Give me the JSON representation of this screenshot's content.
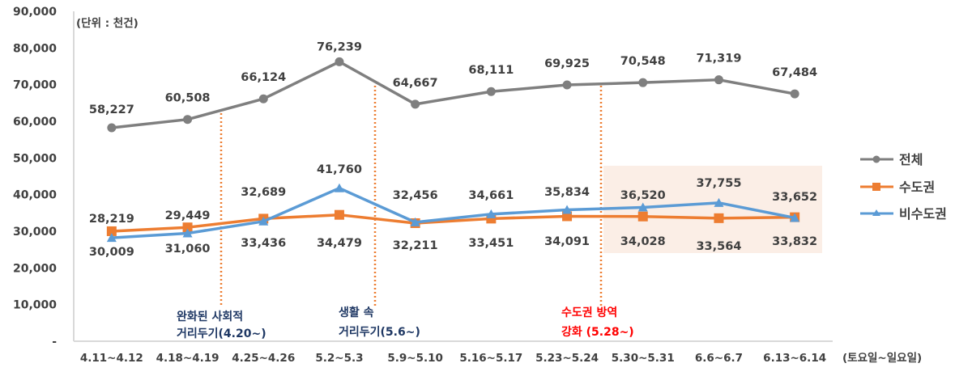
{
  "chart_data": {
    "type": "line",
    "title": "",
    "unit_label": "(단위 : 천건)",
    "xlabel": "(토요일~일요일)",
    "ylabel": "",
    "ylim": [
      0,
      90000
    ],
    "yticks": [
      0,
      10000,
      20000,
      30000,
      40000,
      50000,
      60000,
      70000,
      80000,
      90000
    ],
    "ytick_labels": [
      "-",
      "10,000",
      "20,000",
      "30,000",
      "40,000",
      "50,000",
      "60,000",
      "70,000",
      "80,000",
      "90,000"
    ],
    "grid": false,
    "legend_position": "right",
    "categories": [
      "4.11~4.12",
      "4.18~4.19",
      "4.25~4.26",
      "5.2~5.3",
      "5.9~5.10",
      "5.16~5.17",
      "5.23~5.24",
      "5.30~5.31",
      "6.6~6.7",
      "6.13~6.14"
    ],
    "series": [
      {
        "name": "전체",
        "color": "#7f7f7f",
        "marker": "circle",
        "values": [
          58227,
          60508,
          66124,
          76239,
          64667,
          68111,
          69925,
          70548,
          71319,
          67484
        ],
        "labels": [
          "58,227",
          "60,508",
          "66,124",
          "76,239",
          "64,667",
          "68,111",
          "69,925",
          "70,548",
          "71,319",
          "67,484"
        ]
      },
      {
        "name": "수도권",
        "color": "#ed7d31",
        "marker": "square",
        "values": [
          30009,
          31060,
          33436,
          34479,
          32211,
          33451,
          34091,
          34028,
          33564,
          33832
        ],
        "labels": [
          "30,009",
          "31,060",
          "33,436",
          "34,479",
          "32,211",
          "33,451",
          "34,091",
          "34,028",
          "33,564",
          "33,832"
        ]
      },
      {
        "name": "비수도권",
        "color": "#5b9bd5",
        "marker": "triangle",
        "values": [
          28219,
          29449,
          32689,
          41760,
          32456,
          34661,
          35834,
          36520,
          37755,
          33652
        ],
        "labels": [
          "28,219",
          "29,449",
          "32,689",
          "41,760",
          "32,456",
          "34,661",
          "35,834",
          "36,520",
          "37,755",
          "33,652"
        ]
      }
    ],
    "annotations": [
      {
        "text_line1": "완화된 사회적",
        "text_line2": "거리두기(4.20~)",
        "after_category": "4.18~4.19",
        "color": "#1f3864"
      },
      {
        "text_line1": "생활 속",
        "text_line2": "거리두기(5.6~)",
        "after_category": "5.2~5.3",
        "color": "#1f3864"
      },
      {
        "text_line1": "수도권 방역",
        "text_line2": "강화 (5.28~)",
        "after_category": "5.23~5.24",
        "color": "#ff0000"
      }
    ],
    "highlight_region": {
      "from_category": "5.30~5.31",
      "to_category": "6.13~6.14",
      "color": "#fbeee6"
    }
  }
}
